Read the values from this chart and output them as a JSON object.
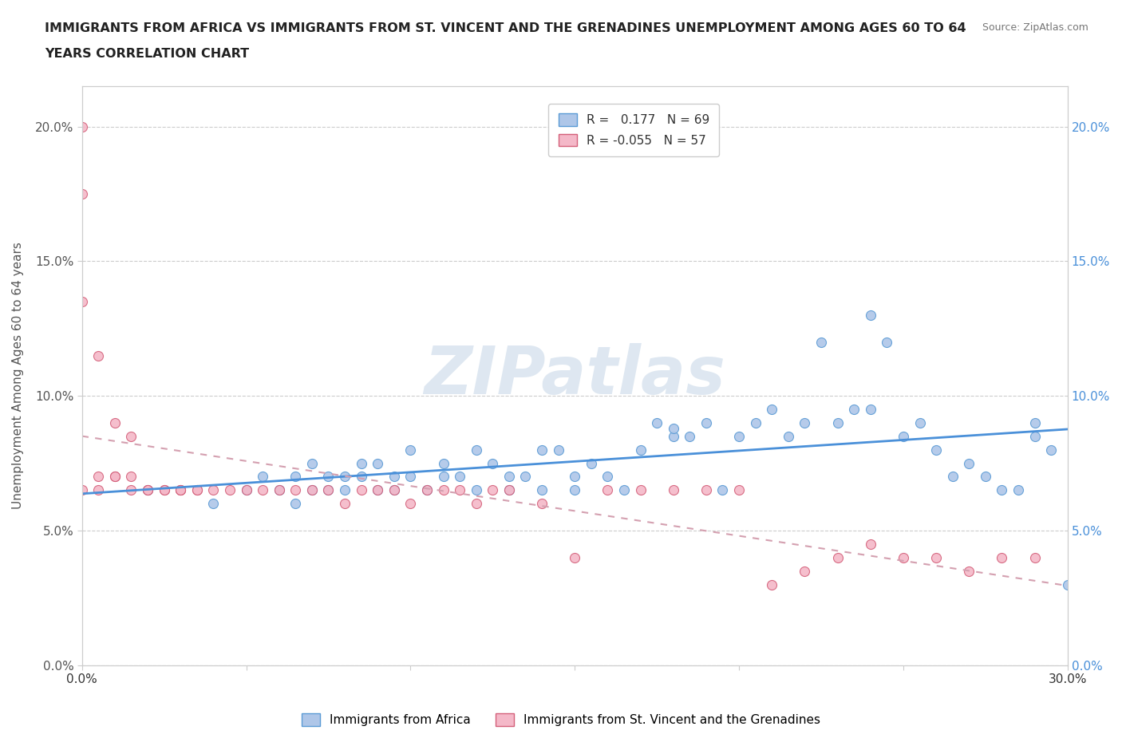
{
  "title_line1": "IMMIGRANTS FROM AFRICA VS IMMIGRANTS FROM ST. VINCENT AND THE GRENADINES UNEMPLOYMENT AMONG AGES 60 TO 64",
  "title_line2": "YEARS CORRELATION CHART",
  "source": "Source: ZipAtlas.com",
  "ylabel": "Unemployment Among Ages 60 to 64 years",
  "xlim": [
    0.0,
    0.3
  ],
  "ylim": [
    0.0,
    0.215
  ],
  "xticks": [
    0.0,
    0.05,
    0.1,
    0.15,
    0.2,
    0.25,
    0.3
  ],
  "yticks": [
    0.0,
    0.05,
    0.1,
    0.15,
    0.2
  ],
  "ytick_labels": [
    "0.0%",
    "5.0%",
    "10.0%",
    "15.0%",
    "20.0%"
  ],
  "xtick_labels": [
    "0.0%",
    "",
    "",
    "",
    "",
    "",
    "30.0%"
  ],
  "r_africa": 0.177,
  "n_africa": 69,
  "r_svg": -0.055,
  "n_svg": 57,
  "africa_fill_color": "#aec6e8",
  "africa_edge_color": "#5b9bd5",
  "svg_fill_color": "#f4b8c8",
  "svg_edge_color": "#d4607a",
  "africa_line_color": "#4a90d9",
  "svg_line_color": "#d4a0b0",
  "watermark_color": "#c8d8e8",
  "africa_scatter_x": [
    0.02,
    0.04,
    0.05,
    0.055,
    0.06,
    0.065,
    0.065,
    0.07,
    0.07,
    0.075,
    0.075,
    0.08,
    0.08,
    0.085,
    0.085,
    0.09,
    0.09,
    0.095,
    0.095,
    0.1,
    0.1,
    0.105,
    0.11,
    0.11,
    0.115,
    0.12,
    0.12,
    0.125,
    0.13,
    0.13,
    0.135,
    0.14,
    0.14,
    0.145,
    0.15,
    0.15,
    0.155,
    0.16,
    0.165,
    0.17,
    0.175,
    0.18,
    0.185,
    0.19,
    0.195,
    0.2,
    0.205,
    0.21,
    0.215,
    0.22,
    0.225,
    0.23,
    0.235,
    0.24,
    0.245,
    0.25,
    0.255,
    0.26,
    0.265,
    0.27,
    0.275,
    0.28,
    0.285,
    0.29,
    0.295,
    0.3,
    0.18,
    0.24,
    0.29
  ],
  "africa_scatter_y": [
    0.065,
    0.06,
    0.065,
    0.07,
    0.065,
    0.06,
    0.07,
    0.065,
    0.075,
    0.065,
    0.07,
    0.07,
    0.065,
    0.07,
    0.075,
    0.065,
    0.075,
    0.07,
    0.065,
    0.07,
    0.08,
    0.065,
    0.07,
    0.075,
    0.07,
    0.065,
    0.08,
    0.075,
    0.07,
    0.065,
    0.07,
    0.08,
    0.065,
    0.08,
    0.07,
    0.065,
    0.075,
    0.07,
    0.065,
    0.08,
    0.09,
    0.085,
    0.085,
    0.09,
    0.065,
    0.085,
    0.09,
    0.095,
    0.085,
    0.09,
    0.12,
    0.09,
    0.095,
    0.13,
    0.12,
    0.085,
    0.09,
    0.08,
    0.07,
    0.075,
    0.07,
    0.065,
    0.065,
    0.085,
    0.08,
    0.03,
    0.088,
    0.095,
    0.09
  ],
  "svg_scatter_x": [
    0.0,
    0.0,
    0.0,
    0.0,
    0.005,
    0.005,
    0.01,
    0.01,
    0.015,
    0.015,
    0.02,
    0.025,
    0.03,
    0.03,
    0.035,
    0.04,
    0.045,
    0.05,
    0.055,
    0.06,
    0.065,
    0.07,
    0.075,
    0.08,
    0.085,
    0.09,
    0.095,
    0.1,
    0.105,
    0.11,
    0.115,
    0.12,
    0.125,
    0.13,
    0.14,
    0.15,
    0.16,
    0.17,
    0.18,
    0.19,
    0.2,
    0.21,
    0.22,
    0.23,
    0.24,
    0.25,
    0.26,
    0.27,
    0.28,
    0.29,
    0.005,
    0.01,
    0.015,
    0.02,
    0.025,
    0.03,
    0.035
  ],
  "svg_scatter_y": [
    0.2,
    0.175,
    0.135,
    0.065,
    0.115,
    0.07,
    0.09,
    0.07,
    0.085,
    0.065,
    0.065,
    0.065,
    0.065,
    0.065,
    0.065,
    0.065,
    0.065,
    0.065,
    0.065,
    0.065,
    0.065,
    0.065,
    0.065,
    0.06,
    0.065,
    0.065,
    0.065,
    0.06,
    0.065,
    0.065,
    0.065,
    0.06,
    0.065,
    0.065,
    0.06,
    0.04,
    0.065,
    0.065,
    0.065,
    0.065,
    0.065,
    0.03,
    0.035,
    0.04,
    0.045,
    0.04,
    0.04,
    0.035,
    0.04,
    0.04,
    0.065,
    0.07,
    0.07,
    0.065,
    0.065,
    0.065,
    0.065
  ]
}
